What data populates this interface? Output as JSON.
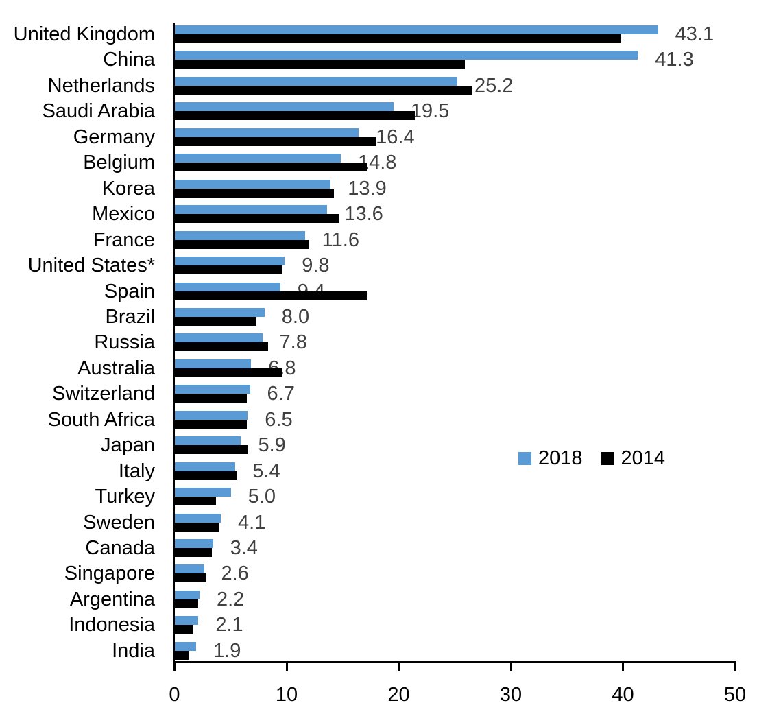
{
  "chart_data": {
    "type": "bar",
    "orientation": "horizontal-grouped",
    "title": "",
    "xlabel": "",
    "ylabel": "",
    "xlim": [
      0,
      50
    ],
    "x_ticks": [
      0,
      10,
      20,
      30,
      40,
      50
    ],
    "x_tick_labels": [
      "0",
      "10",
      "20",
      "30",
      "40",
      "50"
    ],
    "grid": false,
    "legend_position": "middle-right",
    "categories": [
      "United Kingdom",
      "China",
      "Netherlands",
      "Saudi Arabia",
      "Germany",
      "Belgium",
      "Korea",
      "Mexico",
      "France",
      "United States*",
      "Spain",
      "Brazil",
      "Russia",
      "Australia",
      "Switzerland",
      "South Africa",
      "Japan",
      "Italy",
      "Turkey",
      "Sweden",
      "Canada",
      "Singapore",
      "Argentina",
      "Indonesia",
      "India"
    ],
    "series": [
      {
        "name": "2018",
        "color": "#5B9BD5",
        "values": [
          43.1,
          41.3,
          25.2,
          19.5,
          16.4,
          14.8,
          13.9,
          13.6,
          11.6,
          9.8,
          9.4,
          8.0,
          7.8,
          6.8,
          6.7,
          6.5,
          5.9,
          5.4,
          5.0,
          4.1,
          3.4,
          2.6,
          2.2,
          2.1,
          1.9
        ]
      },
      {
        "name": "2014",
        "color": "#000000",
        "values": [
          39.8,
          25.9,
          26.5,
          21.4,
          18.0,
          17.1,
          14.2,
          14.6,
          12.0,
          9.6,
          17.1,
          7.3,
          8.3,
          9.6,
          6.4,
          6.4,
          6.5,
          5.5,
          3.7,
          4.0,
          3.3,
          2.8,
          2.1,
          1.6,
          1.2
        ]
      }
    ],
    "data_labels": [
      "43.1",
      "41.3",
      "25.2",
      "19.5",
      "16.4",
      "14.8",
      "13.9",
      "13.6",
      "11.6",
      "9.8",
      "9.4",
      "8.0",
      "7.8",
      "6.8",
      "6.7",
      "6.5",
      "5.9",
      "5.4",
      "5.0",
      "4.1",
      "3.4",
      "2.6",
      "2.2",
      "2.1",
      "1.9"
    ],
    "data_label_series": "2018",
    "value_label_color": "#404040",
    "axis_color": "#000000"
  },
  "legend": {
    "items": [
      {
        "label": "2018",
        "color": "#5B9BD5"
      },
      {
        "label": "2014",
        "color": "#000000"
      }
    ]
  }
}
